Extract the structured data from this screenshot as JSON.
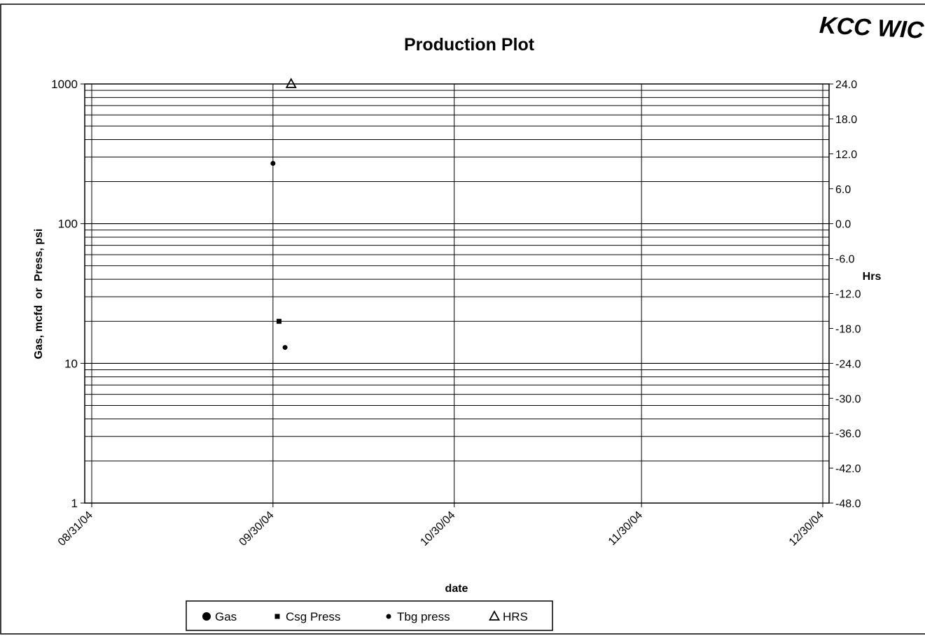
{
  "stamp": "KCC WIC",
  "chart_data": {
    "type": "scatter",
    "title": "Production Plot",
    "xlabel": "date",
    "ylabel": "Gas, mcfd  or  Press, psi",
    "y2label": "Hrs",
    "x_ticks": [
      "08/31/04",
      "09/30/04",
      "10/30/04",
      "11/30/04",
      "12/30/04"
    ],
    "x_range": [
      "2004-08-31",
      "2004-12-31"
    ],
    "y_scale": "log",
    "ylim": [
      1,
      1000
    ],
    "y_ticks": [
      "1",
      "10",
      "100",
      "1000"
    ],
    "y2lim": [
      -48,
      24
    ],
    "y2_ticks": [
      "24.0",
      "18.0",
      "12.0",
      "6.0",
      "0.0",
      "-6.0",
      "-12.0",
      "-18.0",
      "-24.0",
      "-30.0",
      "-36.0",
      "-42.0",
      "-48.0"
    ],
    "grid": true,
    "legend_position": "bottom",
    "series": [
      {
        "name": "Gas",
        "marker": "circle-large",
        "axis": "left",
        "points": []
      },
      {
        "name": "Csg Press",
        "marker": "square-small",
        "axis": "left",
        "points": [
          {
            "x": "2004-10-01",
            "y": 20
          }
        ]
      },
      {
        "name": "Tbg press",
        "marker": "circle-small",
        "axis": "left",
        "points": [
          {
            "x": "2004-09-30",
            "y": 270
          },
          {
            "x": "2004-10-02",
            "y": 13
          }
        ]
      },
      {
        "name": "HRS",
        "marker": "triangle-open",
        "axis": "right",
        "points": [
          {
            "x": "2004-10-03",
            "y": 24
          }
        ]
      }
    ]
  }
}
